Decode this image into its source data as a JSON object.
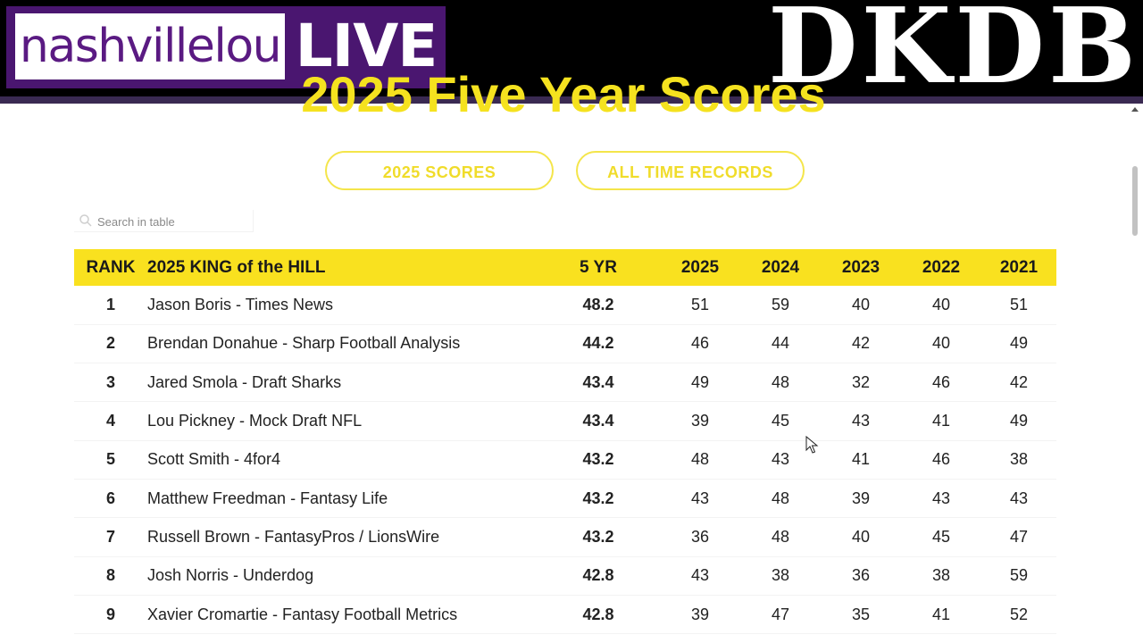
{
  "overlay": {
    "logo_left": "nashvillelou",
    "logo_live": "LIVE",
    "brand_right": "DKDB"
  },
  "page": {
    "title": "2025 Five Year Scores",
    "buttons": {
      "scores": "2025 SCORES",
      "records": "ALL TIME RECORDS"
    },
    "search": {
      "placeholder": "Search in table"
    }
  },
  "table": {
    "headers": [
      "RANK",
      "2025 KING of the HILL",
      "5 YR",
      "2025",
      "2024",
      "2023",
      "2022",
      "2021"
    ],
    "rows": [
      [
        "1",
        "Jason Boris - Times News",
        "48.2",
        "51",
        "59",
        "40",
        "40",
        "51"
      ],
      [
        "2",
        "Brendan Donahue - Sharp Football Analysis",
        "44.2",
        "46",
        "44",
        "42",
        "40",
        "49"
      ],
      [
        "3",
        "Jared Smola - Draft Sharks",
        "43.4",
        "49",
        "48",
        "32",
        "46",
        "42"
      ],
      [
        "4",
        "Lou Pickney - Mock Draft NFL",
        "43.4",
        "39",
        "45",
        "43",
        "41",
        "49"
      ],
      [
        "5",
        "Scott Smith - 4for4",
        "43.2",
        "48",
        "43",
        "41",
        "46",
        "38"
      ],
      [
        "6",
        "Matthew Freedman - Fantasy Life",
        "43.2",
        "43",
        "48",
        "39",
        "43",
        "43"
      ],
      [
        "7",
        "Russell Brown - FantasyPros / LionsWire",
        "43.2",
        "36",
        "48",
        "40",
        "45",
        "47"
      ],
      [
        "8",
        "Josh Norris - Underdog",
        "42.8",
        "43",
        "38",
        "36",
        "38",
        "59"
      ],
      [
        "9",
        "Xavier Cromartie - Fantasy Football Metrics",
        "42.8",
        "39",
        "47",
        "35",
        "41",
        "52"
      ]
    ]
  },
  "colors": {
    "accent_yellow": "#f9e11f",
    "logo_purple": "#4a1670",
    "banner_black": "#000000"
  },
  "icons": [
    "search-icon",
    "scroll-up-icon",
    "mouse-cursor-icon"
  ]
}
